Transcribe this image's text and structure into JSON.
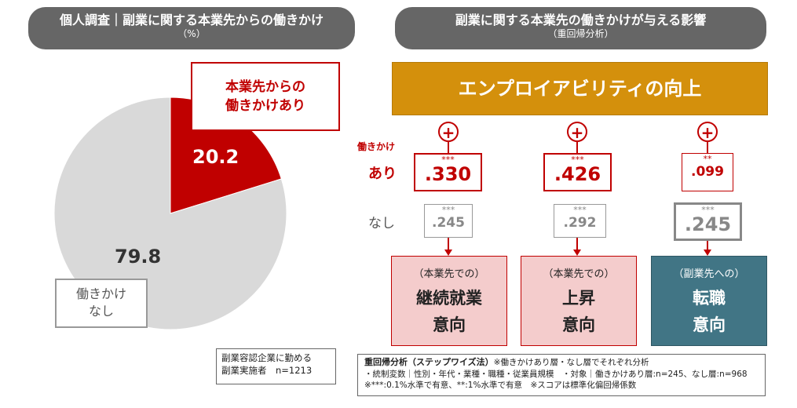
{
  "left_header": {
    "title": "個人調査｜副業に関する本業先からの働きかけ",
    "unit": "（%）"
  },
  "right_header": {
    "title": "副業に関する本業先の働きかけが与える影響",
    "subtitle": "（重回帰分析）"
  },
  "chart_data": {
    "type": "pie",
    "title": "個人調査｜副業に関する本業先からの働きかけ",
    "unit": "%",
    "slices": [
      {
        "label": "本業先からの働きかけあり",
        "value": 20.2,
        "color": "#c00000"
      },
      {
        "label": "働きかけなし",
        "value": 79.8,
        "color": "#d9d9d9"
      }
    ]
  },
  "pie_labels": {
    "yes_callout_line1": "本業先からの",
    "yes_callout_line2": "働きかけあり",
    "yes_value": "20.2",
    "no_value": "79.8",
    "no_callout_line1": "働きかけ",
    "no_callout_line2": "なし"
  },
  "sample_note": {
    "line1": "副業容認企業に勤める",
    "line2": "副業実施者　n=1213"
  },
  "employability": {
    "label": "エンプロイアビリティの向上",
    "color": "#d4900c"
  },
  "plus_symbol": "+",
  "row_labels": {
    "group_title": "働きかけ",
    "yes": "あり",
    "no": "なし"
  },
  "columns": [
    {
      "yes_stars": "***",
      "yes_value": ".330",
      "no_stars": "***",
      "no_value": ".245",
      "outcome_sub": "（本業先での）",
      "outcome_line1": "継続就業",
      "outcome_line2": "意向"
    },
    {
      "yes_stars": "***",
      "yes_value": ".426",
      "no_stars": "***",
      "no_value": ".292",
      "outcome_sub": "（本業先での）",
      "outcome_line1": "上昇",
      "outcome_line2": "意向"
    },
    {
      "yes_stars": "**",
      "yes_value": ".099",
      "no_stars": "***",
      "no_value": ".245",
      "outcome_sub": "（副業先への）",
      "outcome_line1": "転職",
      "outcome_line2": "意向"
    }
  ],
  "method_note": {
    "title": "重回帰分析（ステップワイズ法）",
    "title_suffix": "※働きかけあり層・なし層でそれぞれ分析",
    "line2": "・統制変数｜性別・年代・業種・職種・従業員規模　・対象｜働きかけあり層:n=245、なし層:n=968",
    "line3": "※***:0.1%水準で有意、**:1%水準で有意　※スコアは標準化偏回帰係数"
  },
  "colors": {
    "accent_red": "#c00000",
    "gray": "#d9d9d9",
    "teal": "#417585",
    "pink": "#f4cccc",
    "header": "#666666"
  }
}
